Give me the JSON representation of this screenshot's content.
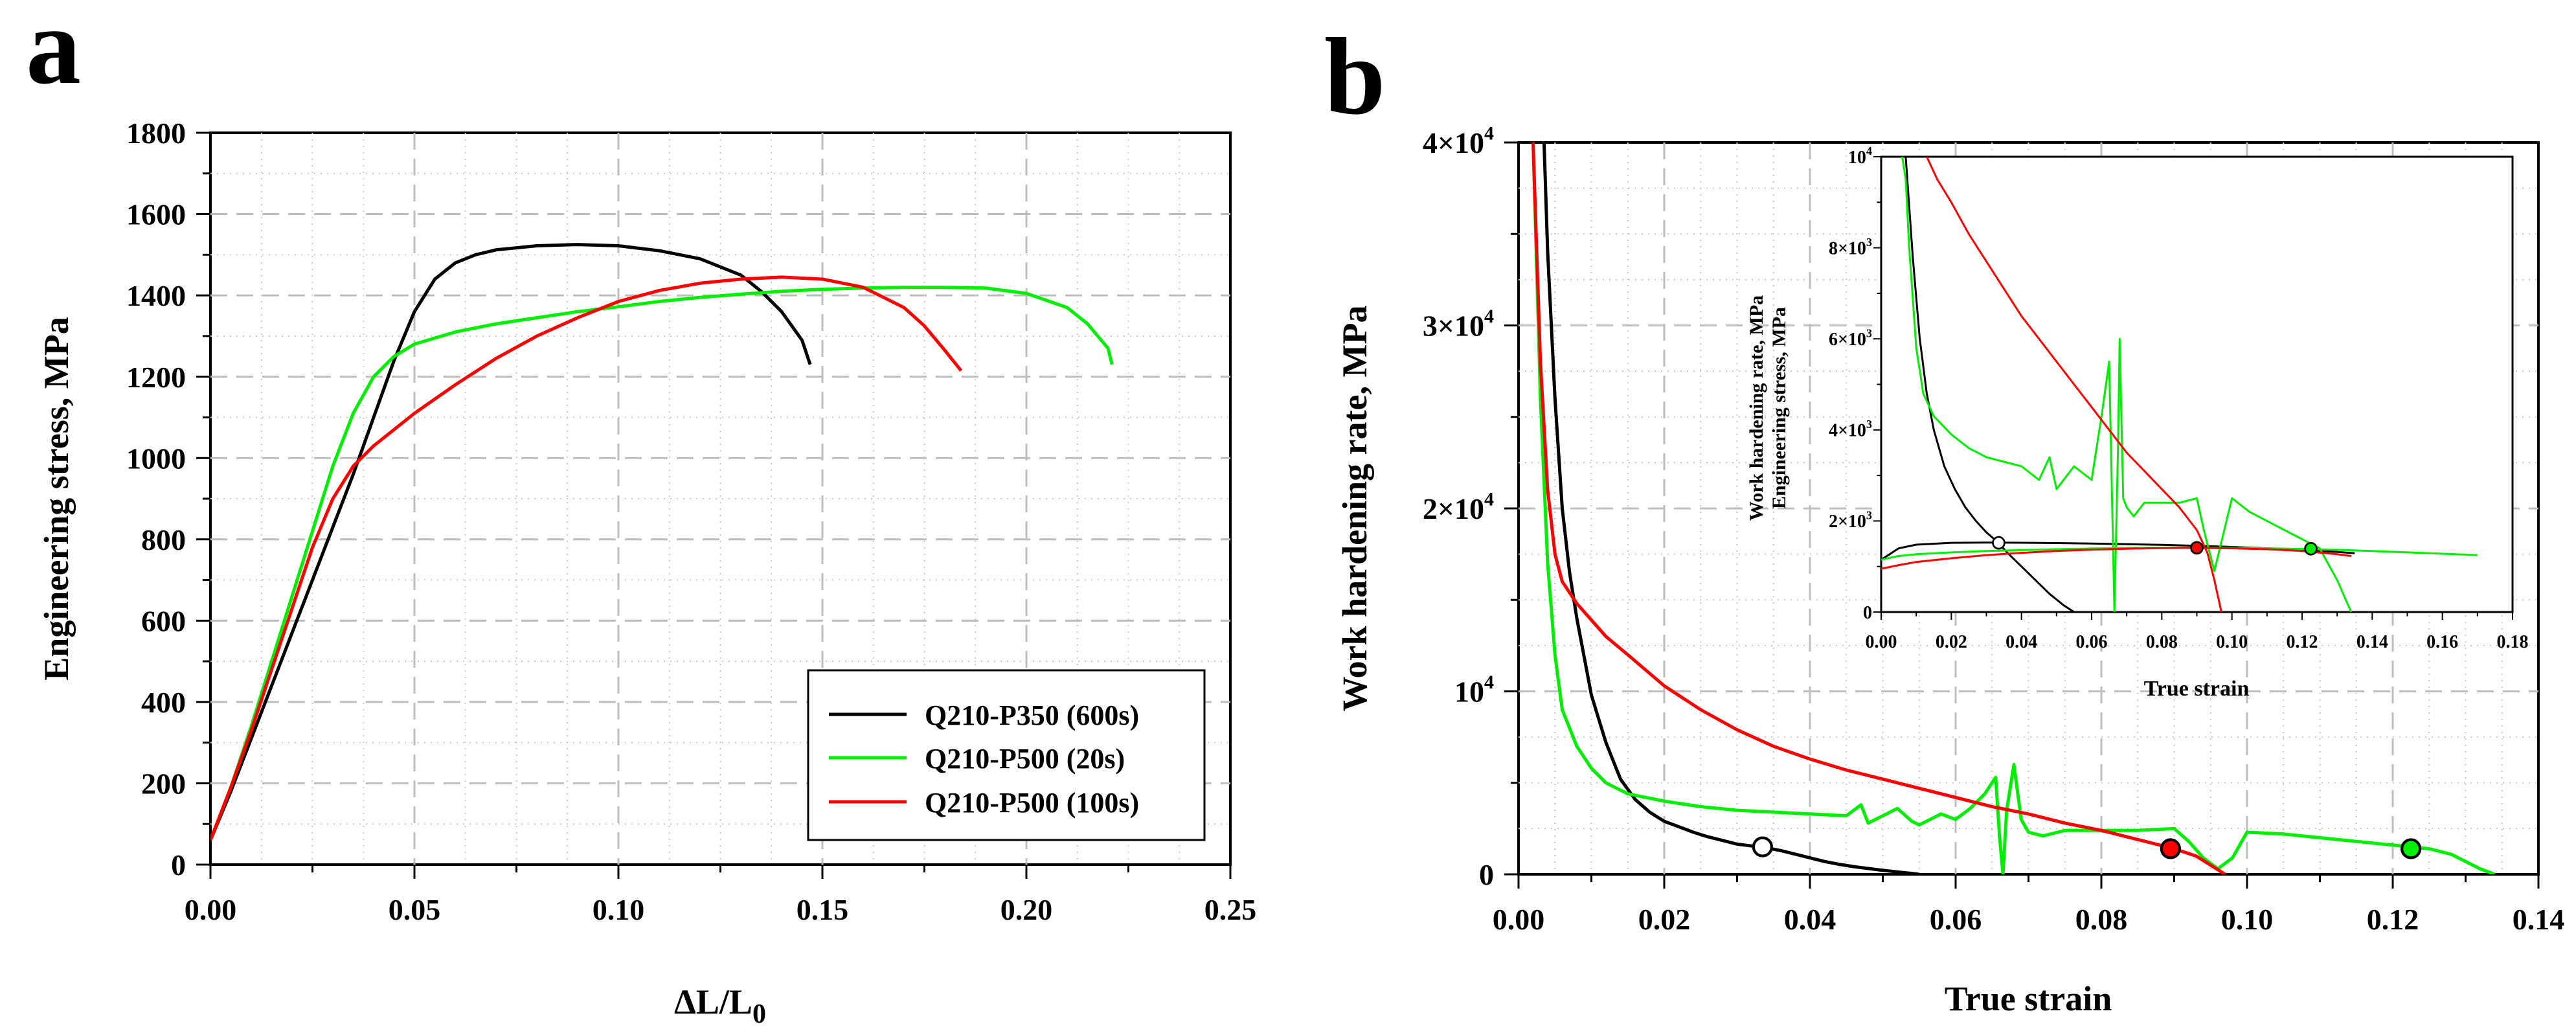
{
  "chart_data": [
    {
      "panel": "a",
      "type": "line",
      "title": "",
      "xlabel": "ΔL/L",
      "xlabel_sub": "0",
      "ylabel": "Engineering stress, MPa",
      "xlim": [
        0,
        0.25
      ],
      "ylim": [
        0,
        1800
      ],
      "xticks": [
        0.0,
        0.05,
        0.1,
        0.15,
        0.2,
        0.25
      ],
      "xtick_labels": [
        "0.00",
        "0.05",
        "0.10",
        "0.15",
        "0.20",
        "0.25"
      ],
      "yticks": [
        0,
        200,
        400,
        600,
        800,
        1000,
        1200,
        1400,
        1600,
        1800
      ],
      "ytick_labels": [
        "0",
        "200",
        "400",
        "600",
        "800",
        "1000",
        "1200",
        "1400",
        "1600",
        "1800"
      ],
      "grid": true,
      "legend_position": "bottom-right",
      "series": [
        {
          "name": "Q210-P350 (600s)",
          "color": "#000000",
          "x": [
            0,
            0.005,
            0.01,
            0.015,
            0.02,
            0.025,
            0.03,
            0.035,
            0.04,
            0.045,
            0.05,
            0.055,
            0.06,
            0.065,
            0.07,
            0.08,
            0.09,
            0.1,
            0.11,
            0.12,
            0.13,
            0.135,
            0.14,
            0.145,
            0.147
          ],
          "y": [
            60,
            180,
            310,
            440,
            570,
            700,
            830,
            960,
            1100,
            1240,
            1360,
            1440,
            1480,
            1500,
            1512,
            1522,
            1525,
            1522,
            1510,
            1490,
            1450,
            1410,
            1360,
            1290,
            1230
          ]
        },
        {
          "name": "Q210-P500 (20s)",
          "color": "#00ee00",
          "x": [
            0,
            0.005,
            0.01,
            0.015,
            0.02,
            0.025,
            0.03,
            0.035,
            0.04,
            0.045,
            0.05,
            0.06,
            0.07,
            0.08,
            0.09,
            0.1,
            0.11,
            0.12,
            0.13,
            0.14,
            0.15,
            0.16,
            0.17,
            0.18,
            0.19,
            0.2,
            0.21,
            0.215,
            0.22,
            0.221
          ],
          "y": [
            60,
            190,
            340,
            500,
            660,
            820,
            980,
            1110,
            1200,
            1250,
            1280,
            1310,
            1330,
            1345,
            1360,
            1372,
            1385,
            1395,
            1403,
            1410,
            1415,
            1418,
            1420,
            1420,
            1418,
            1405,
            1370,
            1330,
            1270,
            1230
          ]
        },
        {
          "name": "Q210-P500 (100s)",
          "color": "#ff0000",
          "x": [
            0,
            0.005,
            0.01,
            0.015,
            0.02,
            0.025,
            0.03,
            0.035,
            0.04,
            0.05,
            0.06,
            0.07,
            0.08,
            0.09,
            0.1,
            0.11,
            0.12,
            0.13,
            0.14,
            0.15,
            0.16,
            0.17,
            0.175,
            0.18,
            0.184
          ],
          "y": [
            60,
            190,
            330,
            480,
            630,
            780,
            900,
            980,
            1030,
            1110,
            1180,
            1245,
            1300,
            1345,
            1385,
            1412,
            1430,
            1440,
            1445,
            1440,
            1420,
            1370,
            1325,
            1265,
            1215
          ]
        }
      ]
    },
    {
      "panel": "b",
      "type": "line",
      "title": "",
      "xlabel": "True strain",
      "ylabel": "Work hardening rate, MPa",
      "xlim": [
        0,
        0.14
      ],
      "ylim": [
        0,
        40000
      ],
      "xticks": [
        0.0,
        0.02,
        0.04,
        0.06,
        0.08,
        0.1,
        0.12,
        0.14
      ],
      "xtick_labels": [
        "0.00",
        "0.02",
        "0.04",
        "0.06",
        "0.08",
        "0.10",
        "0.12",
        "0.14"
      ],
      "yticks": [
        0,
        10000,
        20000,
        30000,
        40000
      ],
      "ytick_labels": [
        {
          "base": "0",
          "exp": ""
        },
        {
          "base": "10",
          "exp": "4"
        },
        {
          "base": "2×10",
          "exp": "4"
        },
        {
          "base": "3×10",
          "exp": "4"
        },
        {
          "base": "4×10",
          "exp": "4"
        }
      ],
      "grid": true,
      "series": [
        {
          "name": "Q210-P350 (600s)",
          "color": "#000000",
          "x": [
            0.0035,
            0.004,
            0.005,
            0.006,
            0.007,
            0.008,
            0.01,
            0.012,
            0.014,
            0.016,
            0.018,
            0.02,
            0.022,
            0.024,
            0.026,
            0.028,
            0.03,
            0.032,
            0.034,
            0.036,
            0.038,
            0.04,
            0.042,
            0.044,
            0.046,
            0.048,
            0.05,
            0.052,
            0.054,
            0.055
          ],
          "y": [
            40000,
            34000,
            26000,
            20000,
            16500,
            14000,
            9800,
            7200,
            5200,
            4100,
            3400,
            2900,
            2600,
            2300,
            2050,
            1850,
            1650,
            1550,
            1450,
            1300,
            1100,
            900,
            700,
            550,
            420,
            320,
            220,
            130,
            50,
            0
          ]
        },
        {
          "name": "Q210-P500 (20s)",
          "color": "#00ee00",
          "x": [
            0.002,
            0.003,
            0.004,
            0.005,
            0.006,
            0.008,
            0.01,
            0.012,
            0.015,
            0.02,
            0.025,
            0.03,
            0.035,
            0.04,
            0.045,
            0.047,
            0.048,
            0.05,
            0.052,
            0.054,
            0.055,
            0.058,
            0.06,
            0.062,
            0.064,
            0.0655,
            0.066,
            0.0665,
            0.067,
            0.068,
            0.069,
            0.07,
            0.072,
            0.075,
            0.08,
            0.085,
            0.09,
            0.092,
            0.094,
            0.096,
            0.098,
            0.1,
            0.105,
            0.11,
            0.115,
            0.12,
            0.125,
            0.128,
            0.13,
            0.132,
            0.134
          ],
          "y": [
            40000,
            26000,
            17000,
            12000,
            9000,
            7000,
            5800,
            5000,
            4400,
            4000,
            3700,
            3500,
            3400,
            3300,
            3200,
            3800,
            2800,
            3200,
            3600,
            2900,
            2700,
            3300,
            3000,
            3600,
            4400,
            5300,
            2200,
            0,
            3500,
            6000,
            3000,
            2300,
            2100,
            2400,
            2400,
            2400,
            2500,
            1800,
            900,
            300,
            900,
            2300,
            2200,
            2000,
            1800,
            1600,
            1400,
            1100,
            700,
            300,
            0
          ]
        },
        {
          "name": "Q210-P500 (100s)",
          "color": "#ff0000",
          "x": [
            0.002,
            0.003,
            0.004,
            0.005,
            0.006,
            0.008,
            0.01,
            0.012,
            0.015,
            0.02,
            0.025,
            0.03,
            0.035,
            0.04,
            0.045,
            0.05,
            0.055,
            0.06,
            0.065,
            0.07,
            0.075,
            0.08,
            0.085,
            0.09,
            0.093,
            0.095,
            0.097
          ],
          "y": [
            40000,
            28000,
            21000,
            17500,
            16000,
            14800,
            13900,
            13000,
            12000,
            10300,
            9000,
            7900,
            7000,
            6300,
            5700,
            5200,
            4700,
            4200,
            3700,
            3300,
            2800,
            2400,
            1900,
            1400,
            1000,
            500,
            0
          ]
        }
      ],
      "markers": [
        {
          "series": "Q210-P350 (600s)",
          "x": 0.0335,
          "y": 1500,
          "fill": "#ffffff"
        },
        {
          "series": "Q210-P500 (100s)",
          "x": 0.0895,
          "y": 1400,
          "fill": "#ff0000"
        },
        {
          "series": "Q210-P500 (20s)",
          "x": 0.1225,
          "y": 1400,
          "fill": "#00ee00"
        }
      ]
    },
    {
      "panel": "b-inset",
      "type": "line",
      "title": "",
      "xlabel": "True strain",
      "ylabel": "Work hardening rate, MPa",
      "ylabel2": "Engineering stress, MPa",
      "xlim": [
        0,
        0.18
      ],
      "ylim": [
        0,
        10000
      ],
      "xticks": [
        0.0,
        0.02,
        0.04,
        0.06,
        0.08,
        0.1,
        0.12,
        0.14,
        0.16,
        0.18
      ],
      "xtick_labels": [
        "0.00",
        "0.02",
        "0.04",
        "0.06",
        "0.08",
        "0.10",
        "0.12",
        "0.14",
        "0.16",
        "0.18"
      ],
      "yticks": [
        0,
        2000,
        4000,
        6000,
        8000,
        10000
      ],
      "ytick_labels": [
        {
          "base": "0",
          "exp": ""
        },
        {
          "base": "2×10",
          "exp": "3"
        },
        {
          "base": "4×10",
          "exp": "3"
        },
        {
          "base": "6×10",
          "exp": "3"
        },
        {
          "base": "8×10",
          "exp": "3"
        },
        {
          "base": "10",
          "exp": "4"
        }
      ],
      "grid": false,
      "series": [
        {
          "name": "Q210-P350 (600s) hardening",
          "color": "#000000",
          "x": [
            0.007,
            0.009,
            0.011,
            0.013,
            0.015,
            0.018,
            0.021,
            0.024,
            0.027,
            0.03,
            0.033,
            0.036,
            0.04,
            0.044,
            0.048,
            0.052,
            0.055
          ],
          "y": [
            10000,
            7800,
            6000,
            4800,
            4000,
            3200,
            2700,
            2300,
            2000,
            1750,
            1550,
            1300,
            1000,
            700,
            400,
            150,
            0
          ]
        },
        {
          "name": "Q210-P350 (600s) stress",
          "color": "#000000",
          "x": [
            0,
            0.005,
            0.01,
            0.02,
            0.03,
            0.04,
            0.05,
            0.06,
            0.07,
            0.08,
            0.09,
            0.1,
            0.11,
            0.12,
            0.13,
            0.135
          ],
          "y": [
            1150,
            1400,
            1480,
            1520,
            1525,
            1522,
            1515,
            1505,
            1490,
            1475,
            1455,
            1430,
            1400,
            1370,
            1320,
            1290
          ]
        },
        {
          "name": "Q210-P500 (20s) hardening",
          "color": "#00ee00",
          "x": [
            0.006,
            0.007,
            0.008,
            0.01,
            0.012,
            0.015,
            0.02,
            0.025,
            0.03,
            0.035,
            0.04,
            0.045,
            0.048,
            0.05,
            0.055,
            0.06,
            0.063,
            0.065,
            0.0665,
            0.0675,
            0.068,
            0.069,
            0.07,
            0.072,
            0.075,
            0.08,
            0.085,
            0.09,
            0.092,
            0.095,
            0.1,
            0.105,
            0.11,
            0.115,
            0.12,
            0.125,
            0.13,
            0.134
          ],
          "y": [
            10000,
            9500,
            8000,
            5800,
            4800,
            4300,
            3900,
            3600,
            3400,
            3300,
            3200,
            2900,
            3400,
            2700,
            3200,
            2900,
            4400,
            5500,
            0,
            3500,
            6000,
            2500,
            2300,
            2100,
            2400,
            2400,
            2400,
            2500,
            1800,
            900,
            2500,
            2200,
            2000,
            1800,
            1600,
            1400,
            700,
            0
          ]
        },
        {
          "name": "Q210-P500 (20s) stress",
          "color": "#00ee00",
          "x": [
            0,
            0.005,
            0.01,
            0.02,
            0.03,
            0.04,
            0.05,
            0.06,
            0.07,
            0.08,
            0.09,
            0.1,
            0.11,
            0.12,
            0.13,
            0.14,
            0.15,
            0.16,
            0.17
          ],
          "y": [
            1150,
            1230,
            1270,
            1310,
            1340,
            1360,
            1380,
            1395,
            1405,
            1410,
            1412,
            1410,
            1400,
            1385,
            1365,
            1340,
            1310,
            1280,
            1250
          ]
        },
        {
          "name": "Q210-P500 (100s) hardening",
          "color": "#ff0000",
          "x": [
            0.013,
            0.016,
            0.02,
            0.025,
            0.03,
            0.035,
            0.04,
            0.045,
            0.05,
            0.055,
            0.06,
            0.065,
            0.07,
            0.075,
            0.08,
            0.085,
            0.09,
            0.093,
            0.095,
            0.097
          ],
          "y": [
            10000,
            9500,
            9000,
            8300,
            7700,
            7100,
            6500,
            6000,
            5500,
            5000,
            4500,
            4000,
            3500,
            3100,
            2700,
            2300,
            1800,
            1300,
            700,
            0
          ]
        },
        {
          "name": "Q210-P500 (100s) stress",
          "color": "#ff0000",
          "x": [
            0,
            0.005,
            0.01,
            0.02,
            0.03,
            0.04,
            0.05,
            0.06,
            0.07,
            0.08,
            0.09,
            0.1,
            0.11,
            0.12,
            0.13,
            0.134
          ],
          "y": [
            950,
            1030,
            1100,
            1180,
            1250,
            1300,
            1340,
            1370,
            1390,
            1405,
            1410,
            1400,
            1380,
            1340,
            1270,
            1230
          ]
        }
      ],
      "markers": [
        {
          "series": "Q210-P350 (600s)",
          "x": 0.0335,
          "y": 1520,
          "fill": "#ffffff"
        },
        {
          "series": "Q210-P500 (100s)",
          "x": 0.09,
          "y": 1410,
          "fill": "#ff0000"
        },
        {
          "series": "Q210-P500 (20s)",
          "x": 0.1225,
          "y": 1390,
          "fill": "#00ee00"
        }
      ]
    }
  ],
  "panel_labels": [
    "a",
    "b"
  ]
}
